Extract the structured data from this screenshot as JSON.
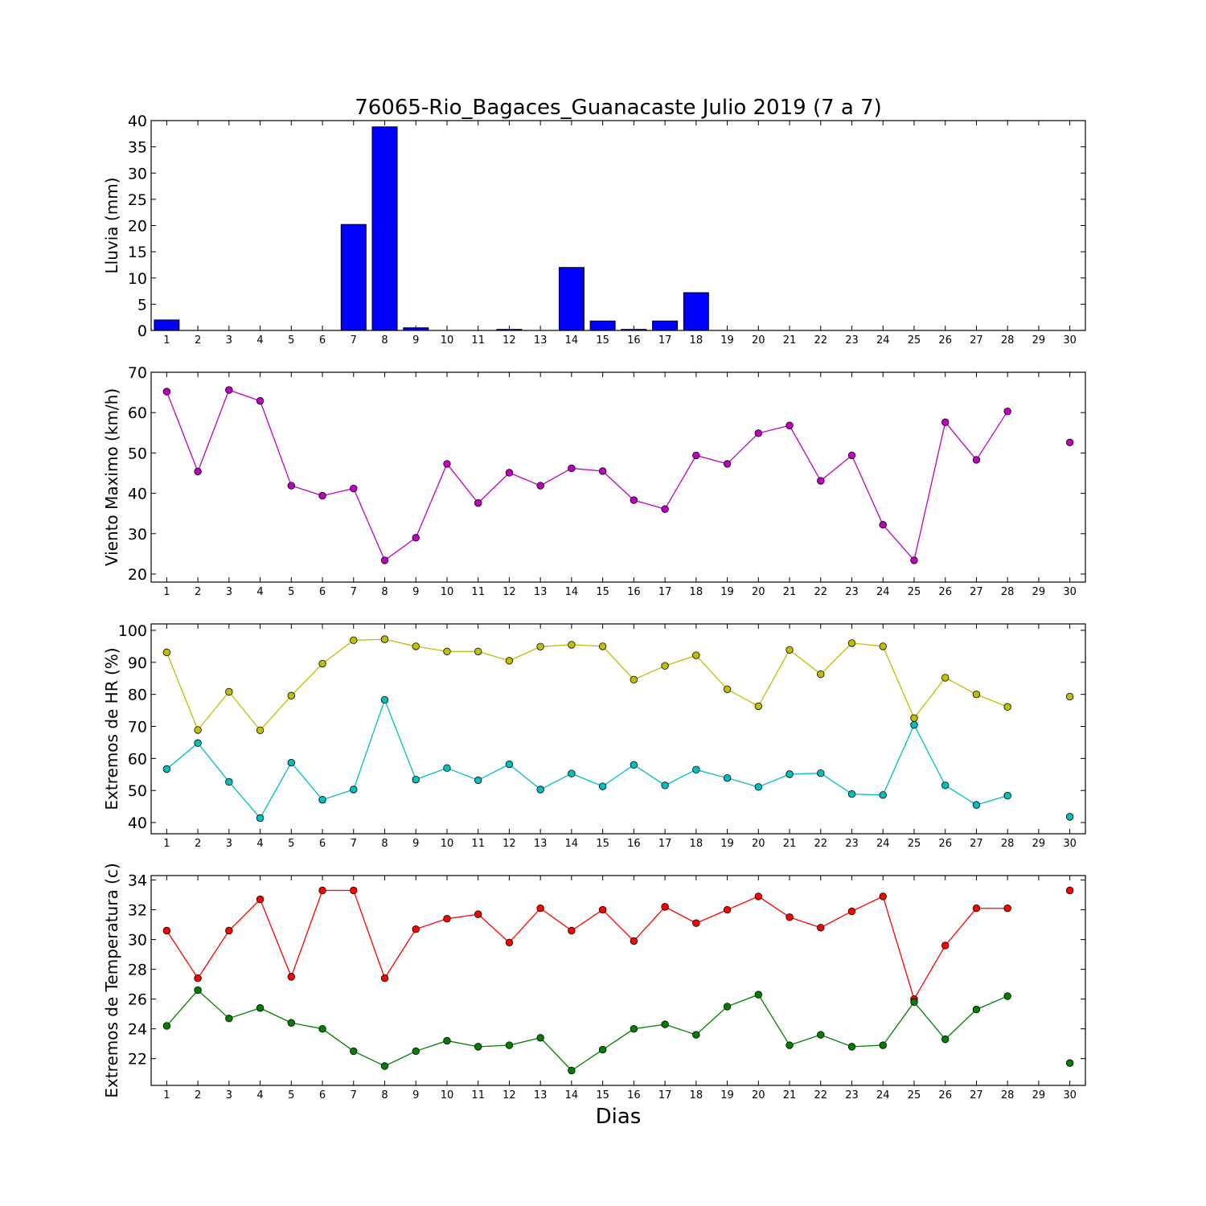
{
  "figure": {
    "title": "76065-Rio_Bagaces_Guanacaste Julio 2019  (7 a 7)",
    "xlabel": "Dias"
  },
  "chart_data": [
    {
      "id": "lluvia",
      "type": "bar",
      "ylabel": "Lluvia (mm)",
      "ylim": [
        0,
        40
      ],
      "yticks": [
        0,
        5,
        10,
        15,
        20,
        25,
        30,
        35,
        40
      ],
      "xlim": [
        0.5,
        30.5
      ],
      "categories": [
        1,
        2,
        3,
        4,
        5,
        6,
        7,
        8,
        9,
        10,
        11,
        12,
        13,
        14,
        15,
        16,
        17,
        18,
        19,
        20,
        21,
        22,
        23,
        24,
        25,
        26,
        27,
        28,
        29,
        30
      ],
      "series": [
        {
          "color": "#0000ff",
          "values": [
            2.0,
            0,
            0,
            0,
            0,
            0,
            20.2,
            38.8,
            0.5,
            0,
            0,
            0.2,
            0,
            12.0,
            1.8,
            0.2,
            1.8,
            7.2,
            0,
            0,
            0,
            0,
            0,
            0,
            0,
            0,
            0,
            0,
            0,
            0
          ]
        }
      ]
    },
    {
      "id": "viento",
      "type": "line",
      "ylabel": "Viento Maximo (km/h)",
      "ylim": [
        18,
        70
      ],
      "yticks": [
        20,
        30,
        40,
        50,
        60,
        70
      ],
      "xlim": [
        0.5,
        30.5
      ],
      "x": [
        1,
        2,
        3,
        4,
        5,
        6,
        7,
        8,
        9,
        10,
        11,
        12,
        13,
        14,
        15,
        16,
        17,
        18,
        19,
        20,
        21,
        22,
        23,
        24,
        25,
        26,
        27,
        28,
        29,
        30
      ],
      "series": [
        {
          "color": "#bf00bf",
          "values": [
            65.2,
            45.4,
            65.6,
            62.9,
            41.9,
            39.4,
            41.2,
            23.4,
            29.0,
            47.3,
            37.6,
            45.1,
            41.9,
            46.2,
            45.5,
            38.3,
            36.1,
            49.4,
            47.3,
            54.9,
            56.8,
            43.1,
            49.4,
            32.2,
            23.4,
            57.6,
            48.3,
            60.3,
            null,
            52.6
          ]
        }
      ]
    },
    {
      "id": "hr",
      "type": "line",
      "ylabel": "Extremos de HR (%)",
      "ylim": [
        36.5,
        102
      ],
      "yticks": [
        40,
        50,
        60,
        70,
        80,
        90,
        100
      ],
      "xlim": [
        0.5,
        30.5
      ],
      "x": [
        1,
        2,
        3,
        4,
        5,
        6,
        7,
        8,
        9,
        10,
        11,
        12,
        13,
        14,
        15,
        16,
        17,
        18,
        19,
        20,
        21,
        22,
        23,
        24,
        25,
        26,
        27,
        28,
        29,
        30
      ],
      "series": [
        {
          "color": "#bfbf00",
          "values": [
            93.1,
            68.9,
            80.8,
            68.8,
            79.6,
            89.6,
            96.9,
            97.2,
            95.0,
            93.4,
            93.4,
            90.5,
            94.9,
            95.5,
            95.0,
            84.6,
            88.9,
            92.2,
            81.6,
            76.3,
            93.9,
            86.3,
            96.0,
            95.0,
            72.6,
            85.2,
            80.0,
            76.1,
            null,
            79.3
          ]
        },
        {
          "color": "#00bfbf",
          "values": [
            56.7,
            64.8,
            52.7,
            41.4,
            58.7,
            47.1,
            50.3,
            78.3,
            53.4,
            57.0,
            53.2,
            58.2,
            50.3,
            55.3,
            51.3,
            58.0,
            51.6,
            56.5,
            53.9,
            51.1,
            55.1,
            55.4,
            48.9,
            48.6,
            70.5,
            51.6,
            45.5,
            48.4,
            null,
            41.8
          ]
        }
      ]
    },
    {
      "id": "temp",
      "type": "line",
      "ylabel": "Extremos de Temperatura (c)",
      "ylim": [
        20.2,
        34.3
      ],
      "yticks": [
        22,
        24,
        26,
        28,
        30,
        32,
        34
      ],
      "xlim": [
        0.5,
        30.5
      ],
      "x": [
        1,
        2,
        3,
        4,
        5,
        6,
        7,
        8,
        9,
        10,
        11,
        12,
        13,
        14,
        15,
        16,
        17,
        18,
        19,
        20,
        21,
        22,
        23,
        24,
        25,
        26,
        27,
        28,
        29,
        30
      ],
      "series": [
        {
          "color": "#ff0000",
          "values": [
            30.6,
            27.4,
            30.6,
            32.7,
            27.5,
            33.3,
            33.3,
            27.4,
            30.7,
            31.4,
            31.7,
            29.8,
            32.1,
            30.6,
            32.0,
            29.9,
            32.2,
            31.1,
            32.0,
            32.9,
            31.5,
            30.8,
            31.9,
            32.9,
            26.0,
            29.6,
            32.1,
            32.1,
            null,
            33.3
          ]
        },
        {
          "color": "#007f00",
          "values": [
            24.2,
            26.6,
            24.7,
            25.4,
            24.4,
            24.0,
            22.5,
            21.5,
            22.5,
            23.2,
            22.8,
            22.9,
            23.4,
            21.2,
            22.6,
            24.0,
            24.3,
            23.6,
            25.5,
            26.3,
            22.9,
            23.6,
            22.8,
            22.9,
            25.8,
            23.3,
            25.3,
            26.2,
            null,
            21.7
          ]
        }
      ]
    }
  ]
}
